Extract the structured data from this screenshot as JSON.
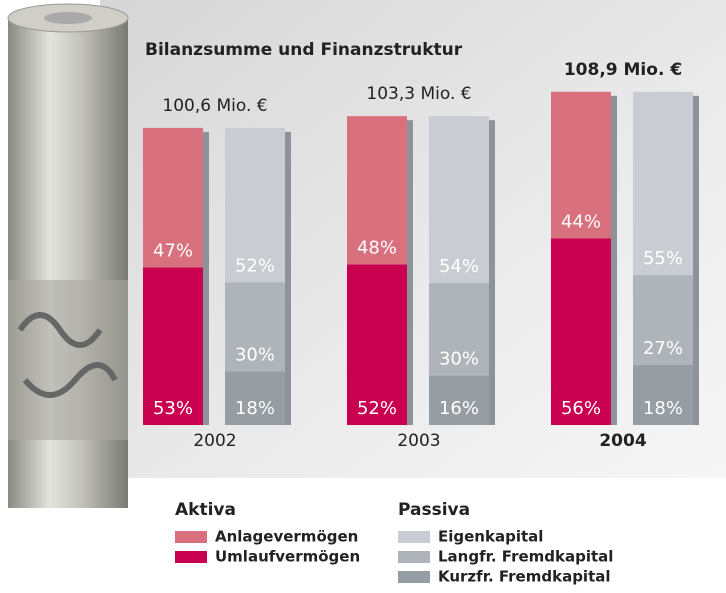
{
  "chart_data": {
    "type": "stacked-pair-bar",
    "title": "Bilanzsumme und Finanzstruktur",
    "categories": [
      "2002",
      "2003",
      "2004"
    ],
    "totals": [
      100.6,
      103.3,
      108.9
    ],
    "total_labels": [
      "100,6 Mio. €",
      "103,3 Mio. €",
      "108,9 Mio. €"
    ],
    "highlight": 2,
    "stacks": [
      {
        "name": "Aktiva",
        "series": [
          {
            "name": "Umlaufvermögen",
            "color": "#c8004f",
            "values": [
              53,
              52,
              56
            ],
            "value_labels": [
              "53%",
              "52%",
              "56%"
            ]
          },
          {
            "name": "Anlagevermögen",
            "color": "#d9707e",
            "values": [
              47,
              48,
              44
            ],
            "value_labels": [
              "47%",
              "48%",
              "44%"
            ]
          }
        ]
      },
      {
        "name": "Passiva",
        "series": [
          {
            "name": "Kurzfr. Fremdkapital",
            "color": "#969da3",
            "values": [
              18,
              16,
              18
            ],
            "value_labels": [
              "18%",
              "16%",
              "18%"
            ]
          },
          {
            "name": "Langfr. Fremdkapital",
            "color": "#afb4ba",
            "values": [
              30,
              30,
              27
            ],
            "value_labels": [
              "30%",
              "30%",
              "27%"
            ]
          },
          {
            "name": "Eigenkapital",
            "color": "#c9cdd3",
            "values": [
              52,
              54,
              55
            ],
            "value_labels": [
              "52%",
              "54%",
              "55%"
            ]
          }
        ]
      }
    ]
  }
}
